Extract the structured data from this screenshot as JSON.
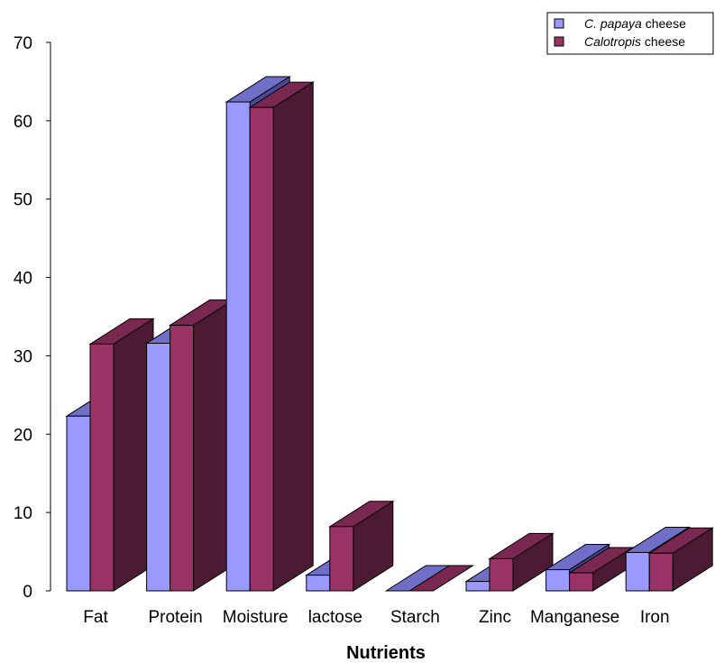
{
  "chart_data": {
    "type": "bar",
    "title": "",
    "xlabel": "Nutrients",
    "ylabel": "",
    "ylim": [
      0,
      70
    ],
    "yticks": [
      0,
      10,
      20,
      30,
      40,
      50,
      60,
      70
    ],
    "categories": [
      "Fat",
      "Protein",
      "Moisture",
      "lactose",
      "Starch",
      "Zinc",
      "Manganese",
      "Iron"
    ],
    "series": [
      {
        "name": "C. papaya cheese",
        "name_italic": "C. papaya",
        "name_rest": " cheese",
        "color": "#9999ff",
        "top_color": "#6f6fc8",
        "side_color": "#4a4a99",
        "values": [
          22.3,
          31.6,
          62.4,
          2.0,
          0.0,
          1.2,
          2.7,
          4.9
        ]
      },
      {
        "name": "Calotropis cheese",
        "name_italic": "Calotropis",
        "name_rest": " cheese",
        "color": "#993366",
        "top_color": "#7a2852",
        "side_color": "#4d1a33",
        "values": [
          31.5,
          33.9,
          61.7,
          8.2,
          0.0,
          4.1,
          2.3,
          4.8
        ]
      }
    ],
    "legend_position": "top-right",
    "grid": false,
    "three_d": true
  }
}
